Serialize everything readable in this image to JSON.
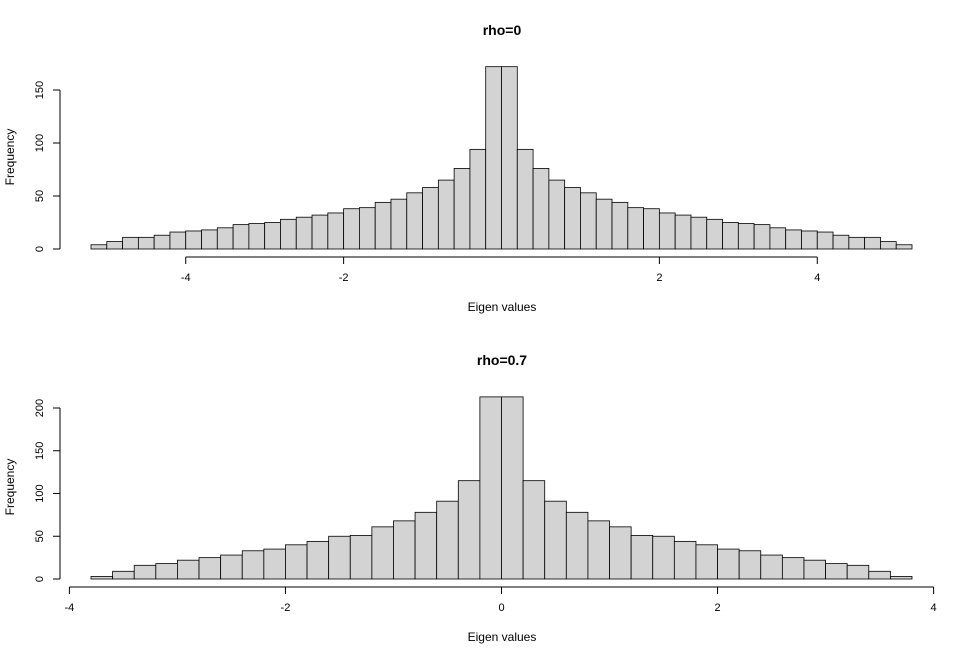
{
  "chart_data": [
    {
      "type": "bar",
      "title": "rho=0",
      "xlabel": "Eigen values",
      "ylabel": "Frequency",
      "xticks": [
        -4,
        -2,
        2,
        4
      ],
      "yticks": [
        0,
        50,
        100,
        150
      ],
      "xlim": [
        -5.2,
        5.2
      ],
      "bin_width": 0.2,
      "bin_start": -5.2,
      "values": [
        4,
        7,
        11,
        11,
        13,
        16,
        17,
        18,
        20,
        23,
        24,
        25,
        28,
        30,
        32,
        34,
        38,
        39,
        44,
        47,
        53,
        58,
        65,
        76,
        94,
        172,
        172,
        94,
        76,
        65,
        58,
        53,
        47,
        44,
        39,
        38,
        34,
        32,
        30,
        28,
        25,
        24,
        23,
        20,
        18,
        17,
        16,
        13,
        11,
        11,
        7,
        4
      ]
    },
    {
      "type": "bar",
      "title": "rho=0.7",
      "xlabel": "Eigen values",
      "ylabel": "Frequency",
      "xticks": [
        -4,
        -2,
        0,
        2,
        4
      ],
      "yticks": [
        0,
        50,
        100,
        150,
        200
      ],
      "xlim": [
        -4,
        4
      ],
      "bin_width": 0.2,
      "bin_start": -3.8,
      "values": [
        3,
        9,
        16,
        18,
        22,
        25,
        28,
        33,
        35,
        40,
        44,
        50,
        51,
        61,
        68,
        78,
        91,
        115,
        213,
        213,
        115,
        91,
        78,
        68,
        61,
        51,
        50,
        44,
        40,
        35,
        33,
        28,
        25,
        22,
        18,
        16,
        9,
        3
      ]
    }
  ]
}
